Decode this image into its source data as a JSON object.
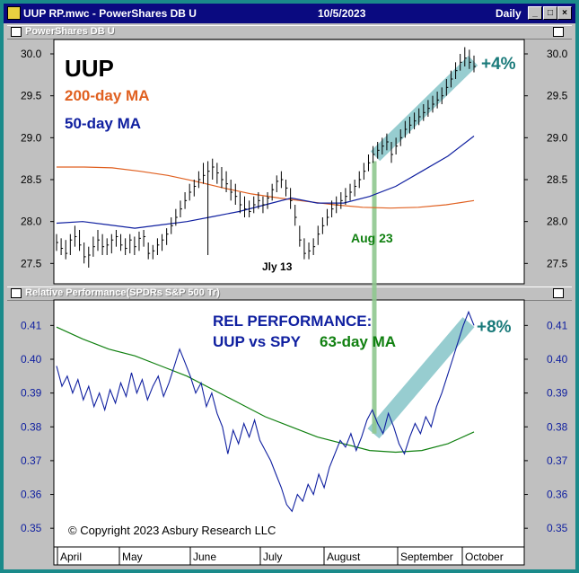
{
  "window": {
    "file_title": "UUP RP.mwc - PowerShares DB U",
    "date": "10/5/2023",
    "period": "Daily"
  },
  "panes": {
    "price_label": "PowerShares DB U",
    "rel_label": "Relative Performance(SPDRs S&P 500 Tr)"
  },
  "annotations": {
    "ticker": "UUP",
    "ma200": "200-day MA",
    "ma50": "50-day MA",
    "gain_price": "+4%",
    "low_label": "Jly 13",
    "aug_label": "Aug 23",
    "rel_title": "REL PERFORMANCE:",
    "rel_sub": "UUP vs SPY",
    "ma63": "63-day MA",
    "gain_rel": "+8%",
    "copyright": "© Copyright 2023 Asbury Research LLC"
  },
  "colors": {
    "ma200": "#e06020",
    "ma50": "#1020a0",
    "ma63": "#108010",
    "rel_line": "#1020a0",
    "annot_teal": "#1a7a7a",
    "channel": "#8cc8cc",
    "aug_marker": "#90c890"
  },
  "chart_data": [
    {
      "type": "line",
      "name": "price",
      "ylim": [
        27.3,
        30.15
      ],
      "yticks": [
        30.0,
        29.5,
        29.0,
        28.5,
        28.0,
        27.5
      ],
      "ytick_labels": [
        "30.0",
        "29.5",
        "29.0",
        "28.5",
        "28.0",
        "27.5"
      ],
      "x_months": [
        "April",
        "May",
        "June",
        "July",
        "August",
        "September",
        "October"
      ],
      "price_days": [
        [
          27.85,
          27.65,
          27.75
        ],
        [
          27.8,
          27.6,
          27.68
        ],
        [
          27.78,
          27.55,
          27.62
        ],
        [
          27.85,
          27.6,
          27.78
        ],
        [
          27.95,
          27.7,
          27.82
        ],
        [
          27.9,
          27.65,
          27.72
        ],
        [
          27.75,
          27.5,
          27.58
        ],
        [
          27.7,
          27.45,
          27.6
        ],
        [
          27.82,
          27.58,
          27.7
        ],
        [
          27.9,
          27.65,
          27.78
        ],
        [
          27.85,
          27.6,
          27.7
        ],
        [
          27.8,
          27.6,
          27.72
        ],
        [
          27.85,
          27.62,
          27.78
        ],
        [
          27.9,
          27.7,
          27.82
        ],
        [
          27.85,
          27.65,
          27.72
        ],
        [
          27.8,
          27.6,
          27.68
        ],
        [
          27.85,
          27.62,
          27.78
        ],
        [
          27.82,
          27.6,
          27.7
        ],
        [
          27.88,
          27.65,
          27.8
        ],
        [
          27.9,
          27.7,
          27.82
        ],
        [
          27.75,
          27.55,
          27.62
        ],
        [
          27.72,
          27.55,
          27.65
        ],
        [
          27.8,
          27.6,
          27.72
        ],
        [
          27.85,
          27.65,
          27.78
        ],
        [
          27.92,
          27.72,
          27.85
        ],
        [
          28.05,
          27.85,
          27.95
        ],
        [
          28.15,
          27.95,
          28.05
        ],
        [
          28.25,
          28.05,
          28.15
        ],
        [
          28.35,
          28.15,
          28.25
        ],
        [
          28.45,
          28.25,
          28.35
        ],
        [
          28.5,
          28.3,
          28.42
        ],
        [
          28.6,
          28.4,
          28.5
        ],
        [
          28.7,
          28.45,
          28.55
        ],
        [
          28.72,
          27.6,
          28.6
        ],
        [
          28.75,
          28.5,
          28.65
        ],
        [
          28.7,
          28.45,
          28.58
        ],
        [
          28.65,
          28.4,
          28.5
        ],
        [
          28.6,
          28.35,
          28.45
        ],
        [
          28.5,
          28.25,
          28.35
        ],
        [
          28.45,
          28.2,
          28.3
        ],
        [
          28.35,
          28.1,
          28.2
        ],
        [
          28.3,
          28.05,
          28.15
        ],
        [
          28.25,
          28.05,
          28.12
        ],
        [
          28.3,
          28.1,
          28.2
        ],
        [
          28.35,
          28.15,
          28.25
        ],
        [
          28.3,
          28.1,
          28.2
        ],
        [
          28.35,
          28.15,
          28.28
        ],
        [
          28.45,
          28.25,
          28.38
        ],
        [
          28.55,
          28.35,
          28.48
        ],
        [
          28.6,
          28.4,
          28.5
        ],
        [
          28.5,
          28.3,
          28.4
        ],
        [
          28.4,
          28.15,
          28.25
        ],
        [
          28.2,
          27.95,
          28.05
        ],
        [
          27.95,
          27.7,
          27.78
        ],
        [
          27.8,
          27.55,
          27.62
        ],
        [
          27.75,
          27.55,
          27.65
        ],
        [
          27.8,
          27.6,
          27.7
        ],
        [
          27.95,
          27.72,
          27.85
        ],
        [
          28.05,
          27.85,
          27.95
        ],
        [
          28.15,
          27.95,
          28.05
        ],
        [
          28.25,
          28.05,
          28.15
        ],
        [
          28.3,
          28.1,
          28.2
        ],
        [
          28.35,
          28.15,
          28.25
        ],
        [
          28.4,
          28.2,
          28.3
        ],
        [
          28.45,
          28.25,
          28.35
        ],
        [
          28.5,
          28.3,
          28.42
        ],
        [
          28.6,
          28.4,
          28.5
        ],
        [
          28.7,
          28.5,
          28.6
        ],
        [
          28.8,
          28.6,
          28.7
        ],
        [
          28.9,
          28.7,
          28.8
        ],
        [
          28.95,
          28.75,
          28.85
        ],
        [
          29.0,
          28.8,
          28.9
        ],
        [
          29.05,
          28.85,
          28.95
        ],
        [
          28.95,
          28.7,
          28.8
        ],
        [
          29.0,
          28.8,
          28.9
        ],
        [
          29.1,
          28.9,
          29.0
        ],
        [
          29.2,
          29.0,
          29.1
        ],
        [
          29.25,
          29.05,
          29.15
        ],
        [
          29.3,
          29.1,
          29.2
        ],
        [
          29.35,
          29.15,
          29.25
        ],
        [
          29.4,
          29.2,
          29.3
        ],
        [
          29.45,
          29.25,
          29.35
        ],
        [
          29.5,
          29.3,
          29.4
        ],
        [
          29.55,
          29.35,
          29.45
        ],
        [
          29.6,
          29.4,
          29.5
        ],
        [
          29.7,
          29.5,
          29.6
        ],
        [
          29.8,
          29.6,
          29.7
        ],
        [
          29.9,
          29.7,
          29.8
        ],
        [
          30.0,
          29.8,
          29.9
        ],
        [
          30.08,
          29.85,
          29.95
        ],
        [
          30.05,
          29.82,
          29.9
        ],
        [
          29.98,
          29.78,
          29.85
        ]
      ],
      "ma200": [
        28.65,
        28.65,
        28.64,
        28.6,
        28.55,
        28.48,
        28.4,
        28.33,
        28.28,
        28.24,
        28.2,
        28.17,
        28.16,
        28.17,
        28.2,
        28.25
      ],
      "ma50": [
        27.98,
        28.0,
        27.96,
        27.92,
        27.96,
        28.0,
        28.06,
        28.12,
        28.2,
        28.28,
        28.22,
        28.22,
        28.3,
        28.42,
        28.6,
        28.78,
        29.02
      ],
      "channel_price": [
        [
          28.78,
          29.92
        ]
      ]
    },
    {
      "type": "line",
      "name": "relative-performance",
      "ylim": [
        0.345,
        0.417
      ],
      "yticks": [
        0.41,
        0.4,
        0.39,
        0.38,
        0.37,
        0.36,
        0.35
      ],
      "ytick_labels": [
        "0.41",
        "0.40",
        "0.39",
        "0.38",
        "0.37",
        "0.36",
        "0.35"
      ],
      "rel": [
        0.398,
        0.392,
        0.395,
        0.39,
        0.394,
        0.388,
        0.392,
        0.386,
        0.39,
        0.385,
        0.391,
        0.387,
        0.393,
        0.389,
        0.396,
        0.39,
        0.394,
        0.388,
        0.392,
        0.395,
        0.389,
        0.393,
        0.398,
        0.403,
        0.399,
        0.395,
        0.39,
        0.393,
        0.386,
        0.39,
        0.384,
        0.38,
        0.372,
        0.379,
        0.375,
        0.381,
        0.377,
        0.382,
        0.376,
        0.373,
        0.37,
        0.366,
        0.362,
        0.357,
        0.355,
        0.36,
        0.358,
        0.363,
        0.36,
        0.366,
        0.362,
        0.368,
        0.372,
        0.376,
        0.374,
        0.378,
        0.373,
        0.377,
        0.382,
        0.385,
        0.381,
        0.378,
        0.384,
        0.38,
        0.375,
        0.372,
        0.377,
        0.381,
        0.378,
        0.383,
        0.38,
        0.386,
        0.39,
        0.395,
        0.4,
        0.405,
        0.41,
        0.414,
        0.41
      ],
      "ma63": [
        0.4095,
        0.406,
        0.403,
        0.401,
        0.398,
        0.395,
        0.391,
        0.387,
        0.383,
        0.38,
        0.377,
        0.375,
        0.373,
        0.3725,
        0.373,
        0.375,
        0.3785
      ],
      "channel_rel": [
        [
          0.378,
          0.411
        ]
      ]
    }
  ]
}
